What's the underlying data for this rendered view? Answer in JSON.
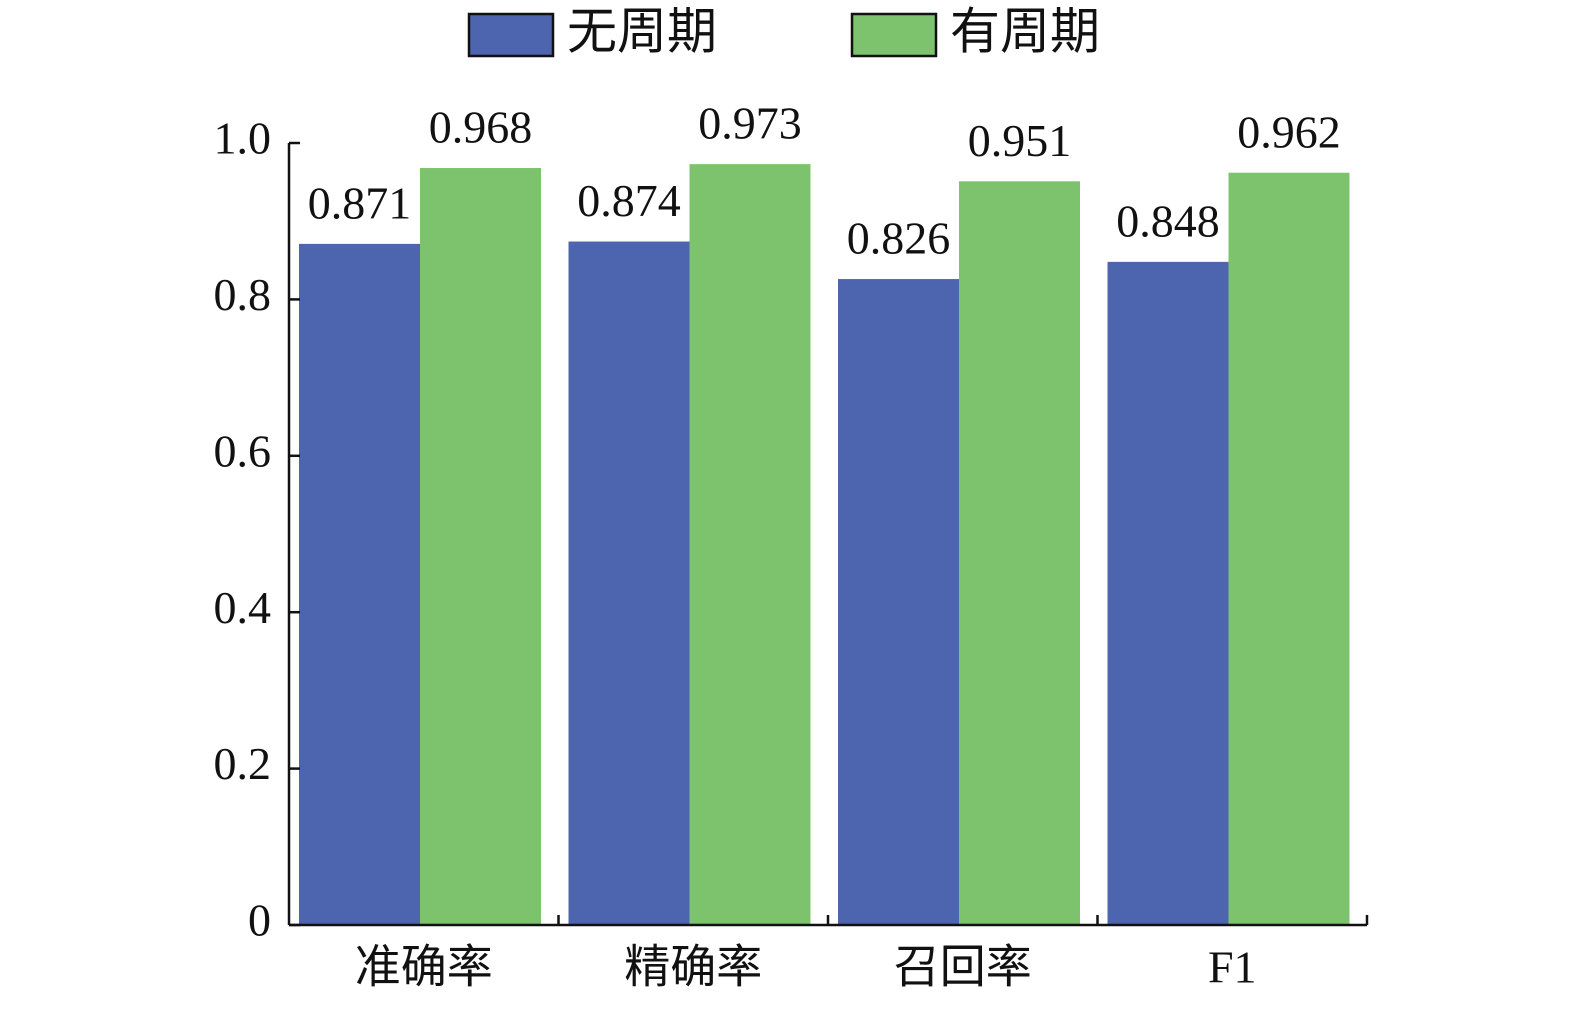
{
  "chart_data": {
    "type": "bar",
    "categories": [
      "准确率",
      "精确率",
      "召回率",
      "F1"
    ],
    "series": [
      {
        "name": "无周期",
        "color": "#4d64ae",
        "values": [
          0.871,
          0.874,
          0.826,
          0.848
        ]
      },
      {
        "name": "有周期",
        "color": "#7dc36e",
        "values": [
          0.968,
          0.973,
          0.951,
          0.962
        ]
      }
    ],
    "ylim": [
      0,
      1
    ],
    "yticks": [
      0,
      0.2,
      0.4,
      0.6,
      0.8,
      {
        "value": 1,
        "label": "1.0"
      }
    ]
  }
}
